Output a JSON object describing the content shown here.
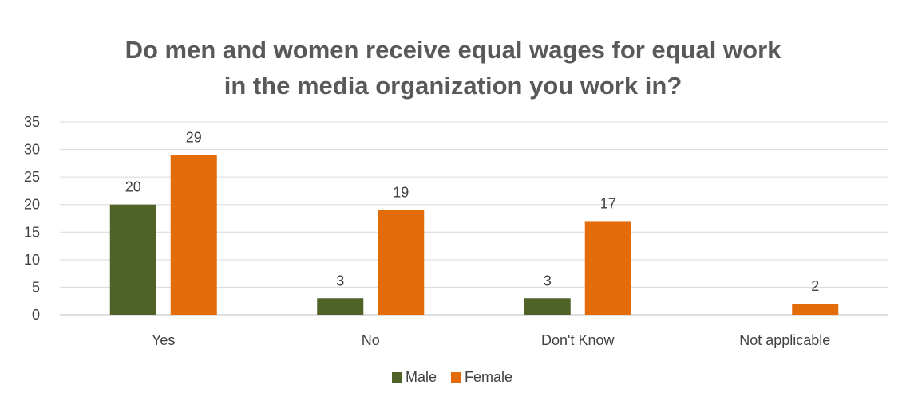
{
  "chart_data": {
    "type": "bar",
    "title_lines": [
      "Do men and women receive equal wages for equal work",
      "in the media organization you work in?"
    ],
    "categories": [
      "Yes",
      "No",
      "Don't Know",
      "Not applicable"
    ],
    "series": [
      {
        "name": "Male",
        "color": "#4f6228",
        "values": [
          20,
          3,
          3,
          null
        ]
      },
      {
        "name": "Female",
        "color": "#e36c09",
        "values": [
          29,
          19,
          17,
          2
        ]
      }
    ],
    "ylim": [
      0,
      35
    ],
    "yticks": [
      0,
      5,
      10,
      15,
      20,
      25,
      30,
      35
    ],
    "grid": true,
    "legend_position": "bottom"
  }
}
